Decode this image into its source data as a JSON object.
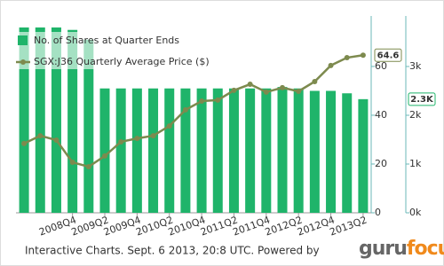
{
  "chart_data": {
    "type": "bar-line",
    "categories": [
      null,
      null,
      null,
      "2008Q4",
      null,
      "2009Q2",
      null,
      "2009Q4",
      null,
      "2010Q2",
      null,
      "2010Q4",
      null,
      "2011Q2",
      null,
      "2011Q4",
      null,
      "2012Q2",
      null,
      "2012Q4",
      null,
      "2013Q2"
    ],
    "series": [
      {
        "name": "No. of Shares at Quarter Ends",
        "type": "bar",
        "axis": "y2",
        "color": "#1fb46a",
        "values": [
          3800,
          3800,
          3800,
          3750,
          3550,
          2550,
          2550,
          2550,
          2550,
          2550,
          2550,
          2550,
          2550,
          2550,
          2550,
          2550,
          2580,
          2550,
          2500,
          2500,
          2450,
          2330
        ],
        "value_labels": [
          null,
          null,
          null,
          null,
          null,
          null,
          null,
          null,
          null,
          null,
          null,
          null,
          null,
          null,
          null,
          null,
          null,
          null,
          null,
          null,
          null,
          "2.3K"
        ]
      },
      {
        "name": "SGX:J36 Quarterly Average Price ($)",
        "type": "line",
        "axis": "y",
        "color": "#7d8a4e",
        "values": [
          28.4,
          31.6,
          29.8,
          20.7,
          18.9,
          23.3,
          29.1,
          30.5,
          31.6,
          35.6,
          42.2,
          45.8,
          46.2,
          50.2,
          52.7,
          49.5,
          51.3,
          49.8,
          53.8,
          60.4,
          63.6,
          64.6
        ],
        "value_labels": [
          null,
          null,
          null,
          null,
          null,
          null,
          null,
          null,
          null,
          null,
          null,
          null,
          null,
          null,
          null,
          null,
          null,
          null,
          null,
          null,
          null,
          "64.6"
        ]
      }
    ],
    "ylim": [
      0,
      80.7
    ],
    "yticks": [
      0,
      20,
      40,
      60
    ],
    "y2lim": [
      0,
      4036
    ],
    "y2ticks": [
      {
        "value": 0,
        "label": "0k"
      },
      {
        "value": 1000,
        "label": "1k"
      },
      {
        "value": 2000,
        "label": "2k"
      },
      {
        "value": 3000,
        "label": "3k"
      }
    ],
    "legend": "top-left"
  },
  "footer": "Interactive Charts. Sept. 6 2013, 20:8 UTC. Powered by",
  "logo": [
    "guru",
    "focus"
  ]
}
